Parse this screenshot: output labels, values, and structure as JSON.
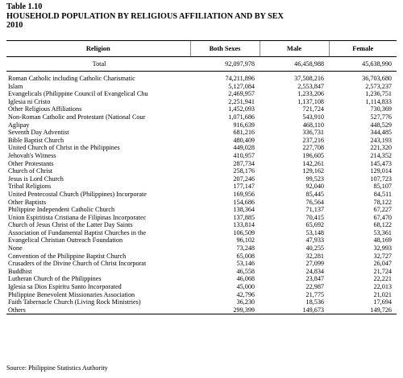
{
  "header": {
    "table_no": "Table 1.10",
    "title": "HOUSEHOLD POPULATION BY RELIGIOUS AFFILIATION AND BY SEX",
    "year": "2010"
  },
  "columns": [
    "Religion",
    "Both Sexes",
    "Male",
    "Female"
  ],
  "total": {
    "name": "Total",
    "both": "92,097,978",
    "male": "46,458,988",
    "female": "45,638,990"
  },
  "rows": [
    {
      "name": "Roman Catholic including Catholic Charismatic",
      "both": "74,211,896",
      "male": "37,508,216",
      "female": "36,703,680"
    },
    {
      "name": "Islam",
      "both": "5,127,084",
      "male": "2,553,847",
      "female": "2,573,237"
    },
    {
      "name": "Evangelicals (Philippine Council of Evangelical Chu",
      "both": "2,469,957",
      "male": "1,233,206",
      "female": "1,236,751"
    },
    {
      "name": "Iglesia ni Cristo",
      "both": "2,251,941",
      "male": "1,137,108",
      "female": "1,114,833"
    },
    {
      "name": "Other Religious Affiliations",
      "both": "1,452,093",
      "male": "721,724",
      "female": "730,369"
    },
    {
      "name": "Non-Roman Catholic and Protestant (National Cour",
      "both": "1,071,686",
      "male": "543,910",
      "female": "527,776"
    },
    {
      "name": "Aglipay",
      "both": "916,639",
      "male": "468,110",
      "female": "448,529"
    },
    {
      "name": "Seventh Day Adventist",
      "both": "681,216",
      "male": "336,731",
      "female": "344,485"
    },
    {
      "name": "Bible Baptist Church",
      "both": "480,409",
      "male": "237,216",
      "female": "243,193"
    },
    {
      "name": "United Church of Christ in the Philippines",
      "both": "449,028",
      "male": "227,708",
      "female": "221,320"
    },
    {
      "name": "Jehovah's Witness",
      "both": "410,957",
      "male": "196,605",
      "female": "214,352"
    },
    {
      "name": "Other Protestants",
      "both": "287,734",
      "male": "142,261",
      "female": "145,473"
    },
    {
      "name": "Church of Christ",
      "both": "258,176",
      "male": "129,162",
      "female": "129,014"
    },
    {
      "name": "Jesus is Lord Church",
      "both": "207,246",
      "male": "99,523",
      "female": "107,723"
    },
    {
      "name": "Tribal Religions",
      "both": "177,147",
      "male": "92,040",
      "female": "85,107"
    },
    {
      "name": "United Pentecostal Church (Philippines) Incorporate",
      "both": "169,956",
      "male": "85,445",
      "female": "84,511"
    },
    {
      "name": "Other Baptists",
      "both": "154,686",
      "male": "76,564",
      "female": "78,122"
    },
    {
      "name": "Philippine Independent Catholic Church",
      "both": "138,364",
      "male": "71,137",
      "female": "67,227"
    },
    {
      "name": "Union Espiritista Cristiana de Filipinas Incorporatec",
      "both": "137,885",
      "male": "70,415",
      "female": "67,470"
    },
    {
      "name": "Church of Jesus Christ of the Latter Day Saints",
      "both": "133,814",
      "male": "65,692",
      "female": "68,122"
    },
    {
      "name": "Association of Fundamental Baptist Churches in the",
      "both": "106,509",
      "male": "53,148",
      "female": "53,361"
    },
    {
      "name": "Evangelical Christian Outreach Foundation",
      "both": "96,102",
      "male": "47,933",
      "female": "48,169"
    },
    {
      "name": "None",
      "both": "73,248",
      "male": "40,255",
      "female": "32,993"
    },
    {
      "name": "Convention of the Philippine Baptist Church",
      "both": "65,008",
      "male": "32,281",
      "female": "32,727"
    },
    {
      "name": "Crusaders of the Divine Church of Christ Incorporat",
      "both": "53,146",
      "male": "27,099",
      "female": "26,047"
    },
    {
      "name": "Buddhist",
      "both": "46,558",
      "male": "24,834",
      "female": "21,724"
    },
    {
      "name": "Lutheran Church of the Philippines",
      "both": "46,068",
      "male": "23,847",
      "female": "22,221"
    },
    {
      "name": "Iglesia sa Dios Espiritu Santo Incorporated",
      "both": "45,000",
      "male": "22,987",
      "female": "22,013"
    },
    {
      "name": "Philippine Benevolent Missionaries Association",
      "both": "42,796",
      "male": "21,775",
      "female": "21,021"
    },
    {
      "name": "Faith Tabernacle Church (Living Rock Ministries)",
      "both": "36,230",
      "male": "18,536",
      "female": "17,694"
    },
    {
      "name": "Others",
      "both": "299,399",
      "male": "149,673",
      "female": "149,726"
    }
  ],
  "source": "Source: Philippine Statistics Authority"
}
